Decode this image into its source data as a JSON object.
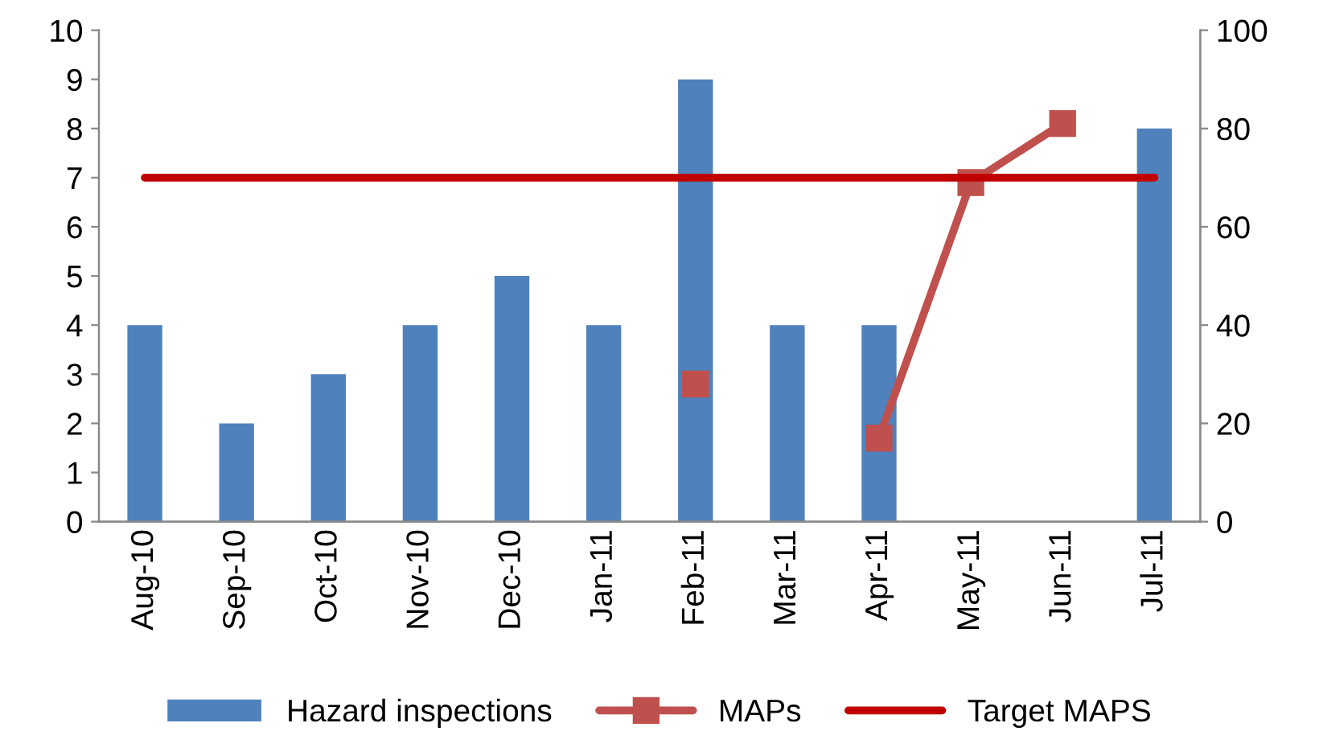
{
  "chart_data": {
    "type": "bar",
    "categories": [
      "Aug-10",
      "Sep-10",
      "Oct-10",
      "Nov-10",
      "Dec-10",
      "Jan-11",
      "Feb-11",
      "Mar-11",
      "Apr-11",
      "May-11",
      "Jun-11",
      "Jul-11"
    ],
    "series": [
      {
        "name": "Hazard inspections",
        "color": "#4f81bd",
        "values": [
          4,
          2,
          3,
          4,
          5,
          4,
          9,
          4,
          4,
          null,
          null,
          8
        ]
      },
      {
        "name": "MAPs",
        "type": "line",
        "axis": "y2",
        "marker": "square",
        "color": "#c0504d",
        "values": [
          null,
          null,
          null,
          null,
          null,
          null,
          28,
          null,
          17,
          69,
          81,
          null
        ]
      },
      {
        "name": "Target MAPS",
        "type": "line",
        "axis": "y2",
        "marker": "none",
        "color": "#c00000",
        "values": [
          70,
          70,
          70,
          70,
          70,
          70,
          70,
          70,
          70,
          70,
          70,
          70
        ]
      }
    ],
    "ylim": [
      0,
      10
    ],
    "yticks": [
      0,
      1,
      2,
      3,
      4,
      5,
      6,
      7,
      8,
      9,
      10
    ],
    "y2lim": [
      0,
      100
    ],
    "y2ticks": [
      0,
      20,
      40,
      60,
      80,
      100
    ],
    "grid": false,
    "legend": "bottom"
  }
}
